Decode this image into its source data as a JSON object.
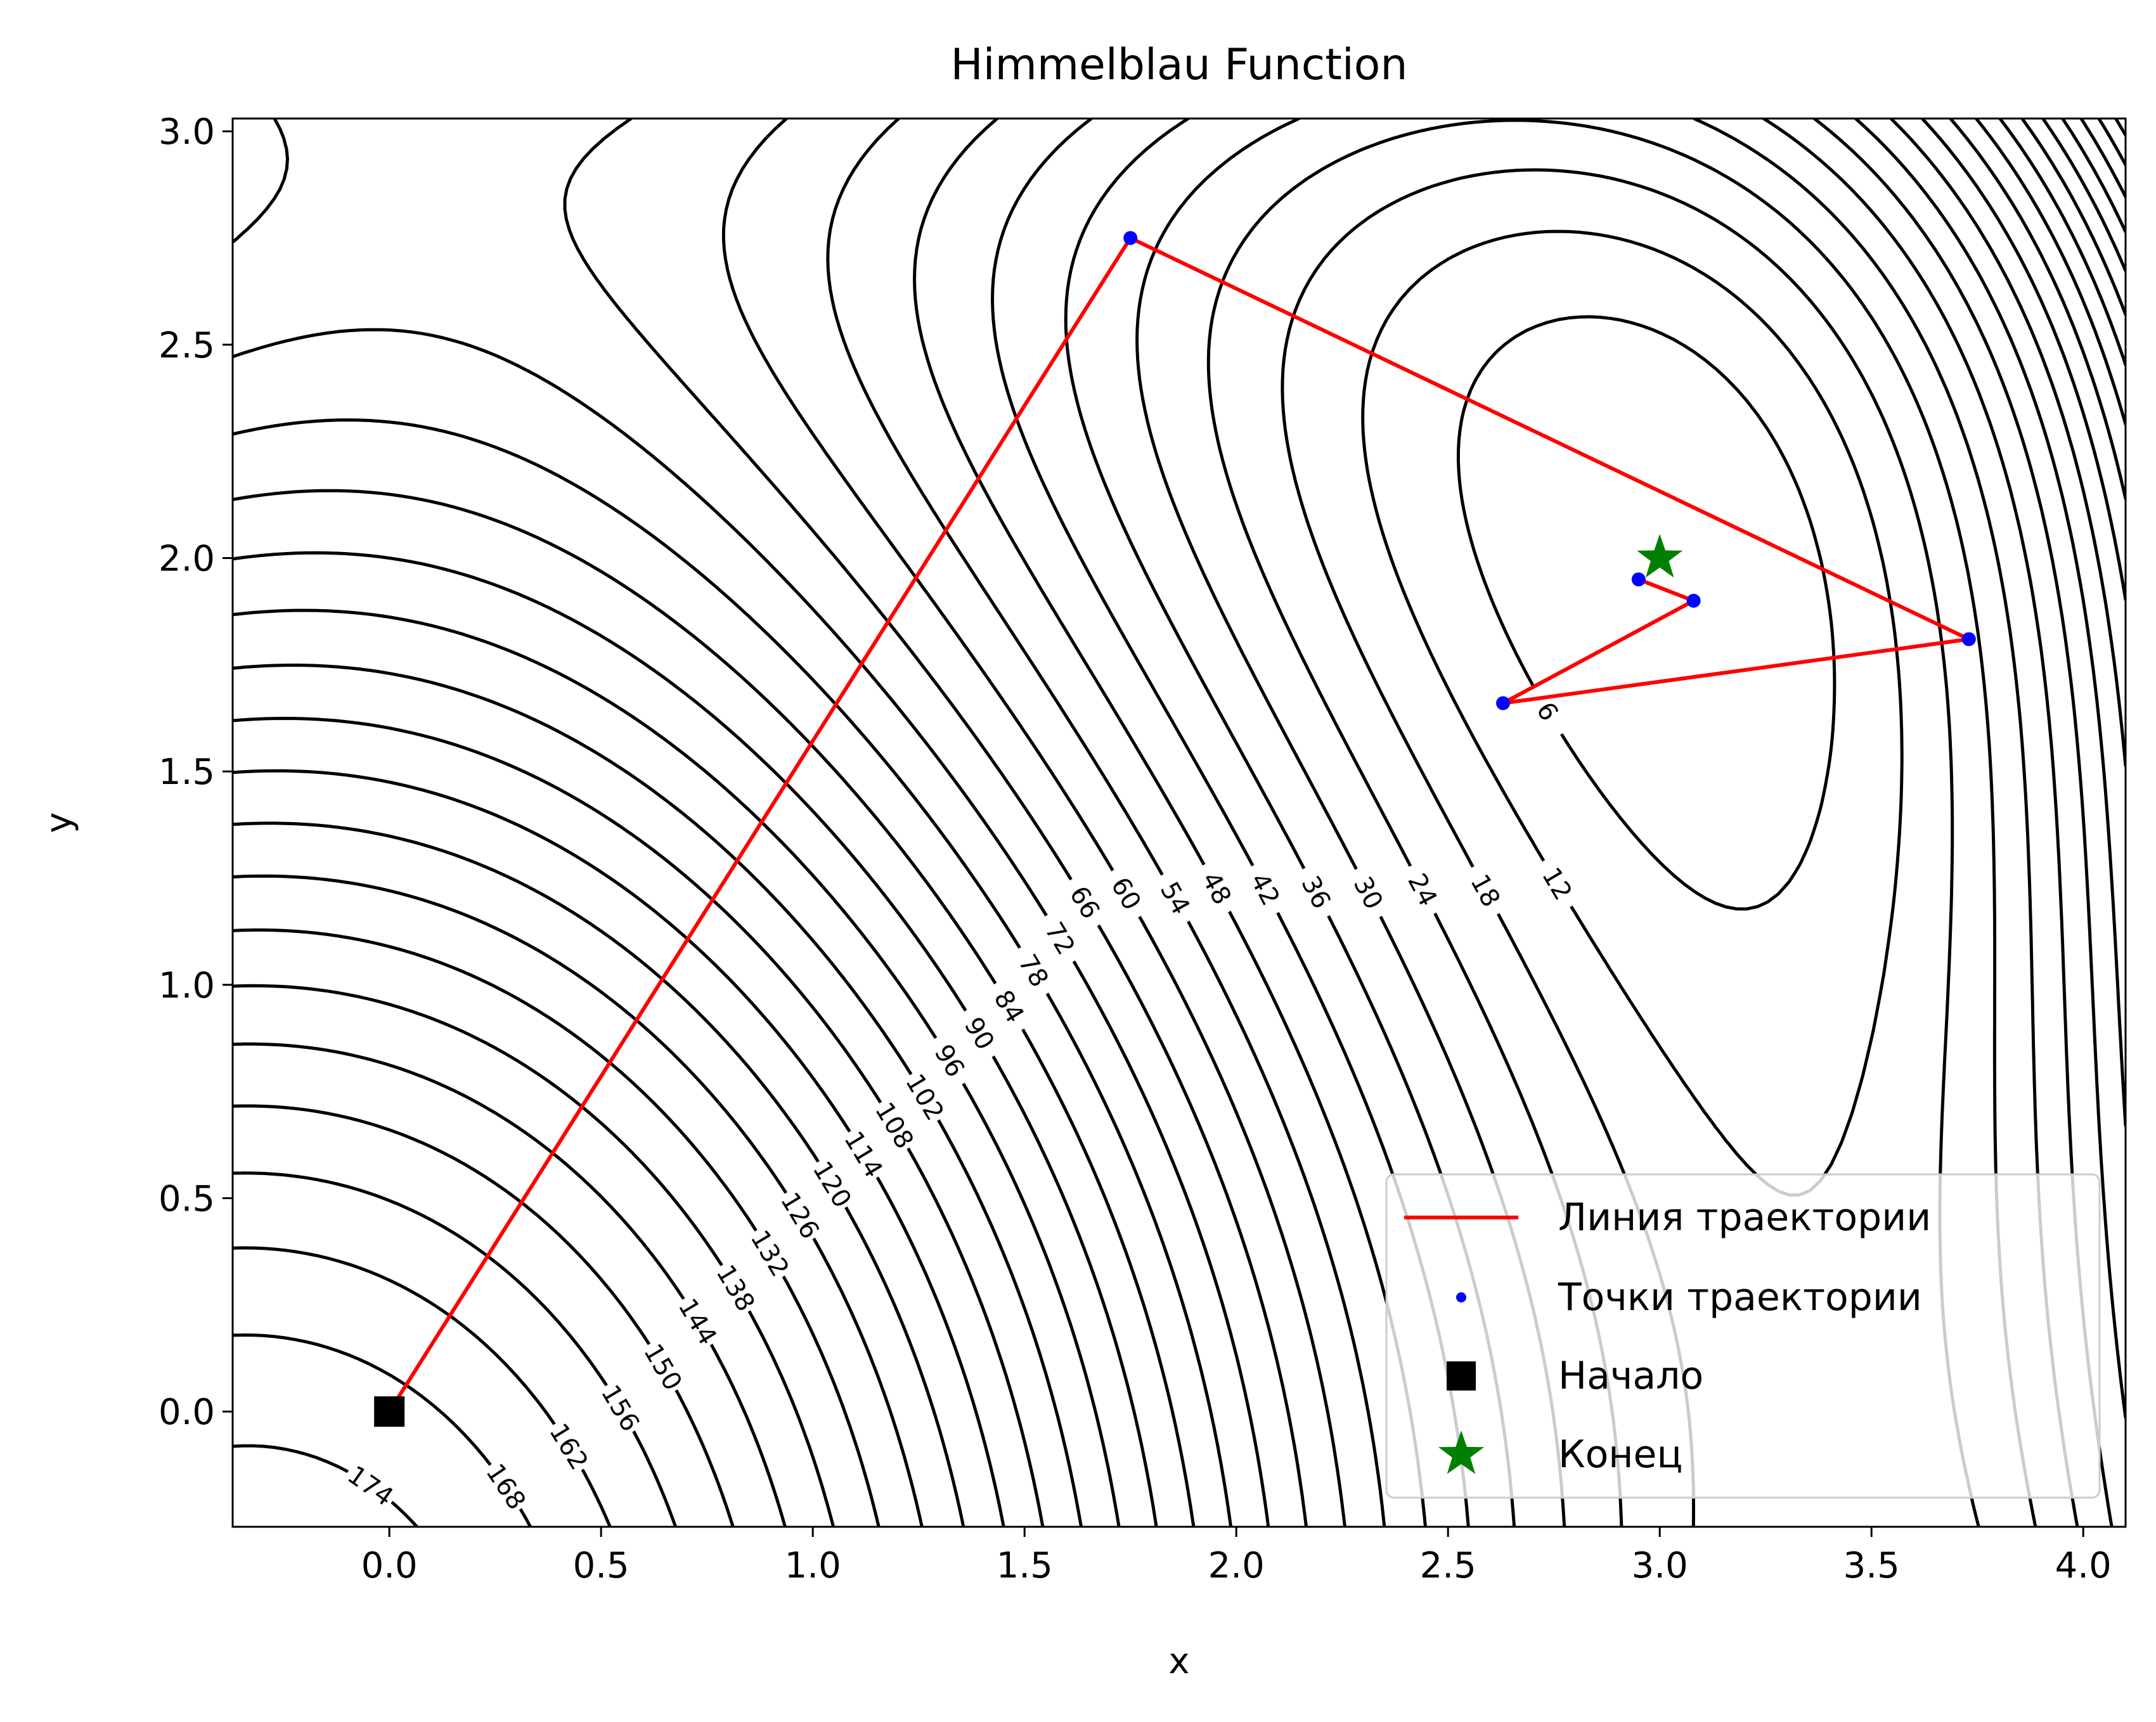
{
  "chart_data": {
    "type": "line",
    "title": "Himmelblau Function",
    "xlabel": "x",
    "ylabel": "y",
    "xlim": [
      -0.37,
      4.1
    ],
    "ylim": [
      -0.27,
      3.03
    ],
    "xticks": [
      "0.0",
      "0.5",
      "1.0",
      "1.5",
      "2.0",
      "2.5",
      "3.0",
      "3.5",
      "4.0"
    ],
    "yticks": [
      "0.0",
      "0.5",
      "1.0",
      "1.5",
      "2.0",
      "2.5",
      "3.0"
    ],
    "grid": false,
    "legend_position": "lower-right",
    "contours": {
      "function": "(x^2 + y - 11)^2 + (x + y^2 - 7)^2",
      "levels_step": 6,
      "color": "#000000",
      "labels": [
        "6",
        "12",
        "18",
        "24",
        "30",
        "36",
        "42",
        "48",
        "54",
        "60",
        "66",
        "72",
        "78",
        "84",
        "90",
        "96",
        "102",
        "108",
        "114",
        "120",
        "126",
        "132",
        "138",
        "144",
        "150",
        "156",
        "162",
        "168",
        "174"
      ]
    },
    "series": [
      {
        "name": "Линия траектории",
        "kind": "line",
        "color": "#ff0000",
        "x": [
          0.0,
          1.75,
          3.73,
          2.63,
          3.08,
          2.95
        ],
        "y": [
          0.0,
          2.75,
          1.81,
          1.66,
          1.9,
          1.95
        ]
      },
      {
        "name": "Точки траектории",
        "kind": "scatter",
        "color": "#0000ff",
        "x": [
          1.75,
          3.73,
          2.63,
          3.08,
          2.95
        ],
        "y": [
          2.75,
          1.81,
          1.66,
          1.9,
          1.95
        ]
      },
      {
        "name": "Начало",
        "kind": "marker",
        "marker": "square",
        "color": "#000000",
        "x": [
          0.0
        ],
        "y": [
          0.0
        ]
      },
      {
        "name": "Конец",
        "kind": "marker",
        "marker": "star",
        "color": "#008000",
        "x": [
          3.0
        ],
        "y": [
          2.0
        ]
      }
    ]
  }
}
